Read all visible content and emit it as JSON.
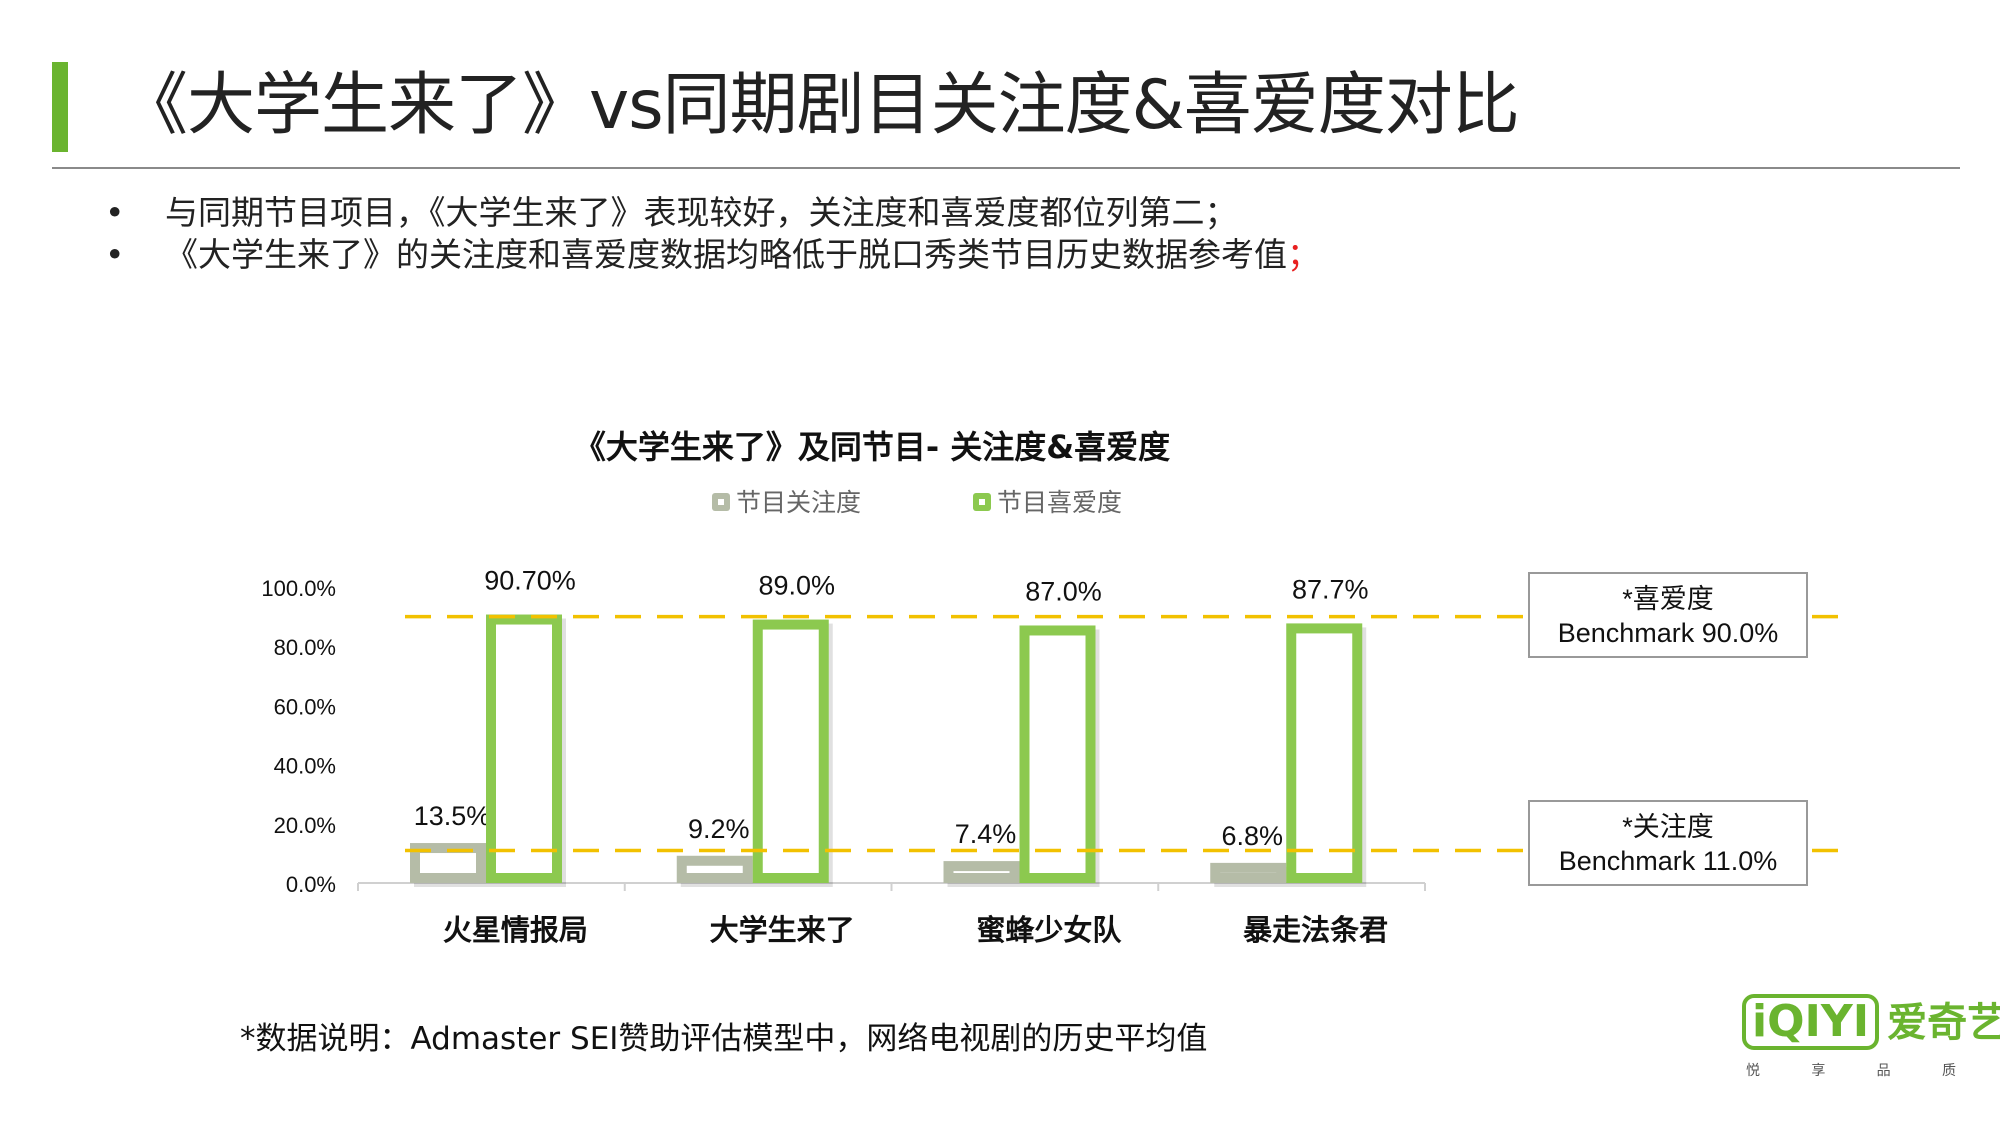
{
  "page": {
    "title": "《大学生来了》vs同期剧目关注度&喜爱度对比",
    "accent_color": "#6ab42f",
    "bullets": [
      {
        "marker": "•",
        "text": "与同期节目项目，《大学生来了》表现较好，关注度和喜爱度都位列第二；",
        "suffix": ""
      },
      {
        "marker": "•",
        "text": "《大学生来了》的关注度和喜爱度数据均略低于脱口秀类节目历史数据参考值",
        "suffix": "；"
      }
    ],
    "footnote": "*数据说明：Admaster SEI赞助评估模型中，网络电视剧的历史平均值",
    "logo": {
      "brand": "iQIYI",
      "name": "爱奇艺",
      "slogan": [
        "悦",
        "享",
        "品",
        "质"
      ]
    }
  },
  "chart_data": {
    "type": "bar",
    "title": "《大学生来了》及同节目- 关注度&喜爱度",
    "categories": [
      "火星情报局",
      "大学生来了",
      "蜜蜂少女队",
      "暴走法条君"
    ],
    "series": [
      {
        "name": "节目关注度",
        "values": [
          13.5,
          9.2,
          7.4,
          6.8
        ],
        "labels": [
          "13.5%",
          "9.2%",
          "7.4%",
          "6.8%"
        ],
        "color": "#b5bca7"
      },
      {
        "name": "节目喜爱度",
        "values": [
          90.7,
          89.0,
          87.0,
          87.7
        ],
        "labels": [
          "90.70%",
          "89.0%",
          "87.0%",
          "87.7%"
        ],
        "color": "#8cc94f"
      }
    ],
    "ylim": [
      0,
      100
    ],
    "yticks": [
      0,
      20,
      40,
      60,
      80,
      100
    ],
    "ytick_labels": [
      "0.0%",
      "20.0%",
      "40.0%",
      "60.0%",
      "80.0%",
      "100.0%"
    ],
    "benchmarks": [
      {
        "label_line1": "*喜爱度",
        "label_line2": "Benchmark 90.0%",
        "value": 90.0,
        "color": "#f2c100"
      },
      {
        "label_line1": "*关注度",
        "label_line2": "Benchmark 11.0%",
        "value": 11.0,
        "color": "#f2c100"
      }
    ],
    "legend_position": "top"
  }
}
